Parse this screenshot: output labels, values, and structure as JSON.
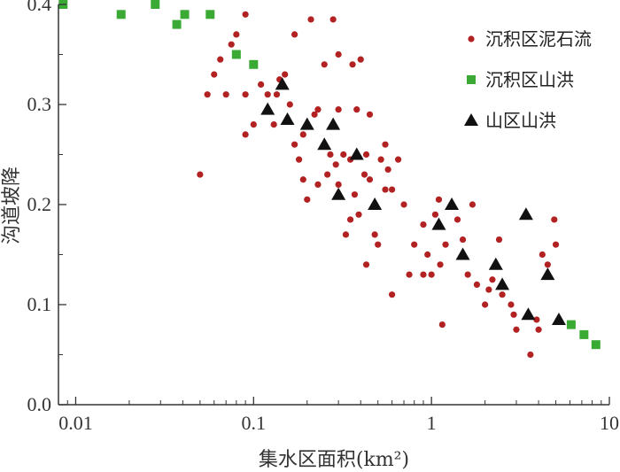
{
  "chart_data": {
    "type": "scatter",
    "xlabel": "集水区面积(km²)",
    "ylabel": "沟道坡降",
    "xscale": "log",
    "xlim": [
      0.008,
      10
    ],
    "ylim": [
      0,
      0.4
    ],
    "x_ticks": [
      0.01,
      0.1,
      1,
      10
    ],
    "x_tick_labels": [
      "0.01",
      "0.1",
      "1",
      "10"
    ],
    "y_ticks": [
      0,
      0.1,
      0.2,
      0.3,
      0.4
    ],
    "y_tick_labels": [
      "0.0",
      "0.1",
      "0.2",
      "0.3",
      "0.4"
    ],
    "grid": false,
    "legend_position": "top-right",
    "series": [
      {
        "name": "沉积区泥石流",
        "marker": "circle",
        "color": "#b22222",
        "points": [
          [
            0.05,
            0.23
          ],
          [
            0.055,
            0.31
          ],
          [
            0.06,
            0.33
          ],
          [
            0.065,
            0.345
          ],
          [
            0.07,
            0.31
          ],
          [
            0.075,
            0.36
          ],
          [
            0.08,
            0.37
          ],
          [
            0.09,
            0.39
          ],
          [
            0.09,
            0.31
          ],
          [
            0.09,
            0.27
          ],
          [
            0.1,
            0.28
          ],
          [
            0.11,
            0.32
          ],
          [
            0.12,
            0.31
          ],
          [
            0.13,
            0.28
          ],
          [
            0.135,
            0.31
          ],
          [
            0.14,
            0.325
          ],
          [
            0.15,
            0.33
          ],
          [
            0.16,
            0.3
          ],
          [
            0.17,
            0.37
          ],
          [
            0.17,
            0.26
          ],
          [
            0.18,
            0.245
          ],
          [
            0.19,
            0.27
          ],
          [
            0.19,
            0.225
          ],
          [
            0.2,
            0.205
          ],
          [
            0.21,
            0.385
          ],
          [
            0.22,
            0.29
          ],
          [
            0.23,
            0.295
          ],
          [
            0.23,
            0.22
          ],
          [
            0.25,
            0.34
          ],
          [
            0.26,
            0.23
          ],
          [
            0.27,
            0.25
          ],
          [
            0.28,
            0.385
          ],
          [
            0.29,
            0.24
          ],
          [
            0.3,
            0.35
          ],
          [
            0.3,
            0.295
          ],
          [
            0.3,
            0.22
          ],
          [
            0.32,
            0.25
          ],
          [
            0.33,
            0.17
          ],
          [
            0.35,
            0.245
          ],
          [
            0.35,
            0.185
          ],
          [
            0.36,
            0.34
          ],
          [
            0.37,
            0.21
          ],
          [
            0.38,
            0.295
          ],
          [
            0.39,
            0.19
          ],
          [
            0.4,
            0.345
          ],
          [
            0.42,
            0.23
          ],
          [
            0.43,
            0.25
          ],
          [
            0.43,
            0.14
          ],
          [
            0.45,
            0.29
          ],
          [
            0.45,
            0.225
          ],
          [
            0.48,
            0.17
          ],
          [
            0.5,
            0.16
          ],
          [
            0.52,
            0.245
          ],
          [
            0.55,
            0.215
          ],
          [
            0.55,
            0.26
          ],
          [
            0.57,
            0.235
          ],
          [
            0.6,
            0.215
          ],
          [
            0.6,
            0.11
          ],
          [
            0.65,
            0.245
          ],
          [
            0.7,
            0.2
          ],
          [
            0.75,
            0.13
          ],
          [
            0.8,
            0.16
          ],
          [
            0.9,
            0.18
          ],
          [
            0.9,
            0.13
          ],
          [
            0.95,
            0.15
          ],
          [
            1.0,
            0.13
          ],
          [
            1.05,
            0.19
          ],
          [
            1.1,
            0.205
          ],
          [
            1.12,
            0.14
          ],
          [
            1.15,
            0.08
          ],
          [
            1.2,
            0.16
          ],
          [
            1.4,
            0.185
          ],
          [
            1.5,
            0.165
          ],
          [
            1.6,
            0.13
          ],
          [
            1.7,
            0.2
          ],
          [
            1.8,
            0.12
          ],
          [
            2.0,
            0.1
          ],
          [
            2.1,
            0.115
          ],
          [
            2.2,
            0.125
          ],
          [
            2.4,
            0.165
          ],
          [
            2.5,
            0.11
          ],
          [
            2.8,
            0.1
          ],
          [
            2.9,
            0.09
          ],
          [
            3.0,
            0.075
          ],
          [
            3.6,
            0.05
          ],
          [
            3.9,
            0.085
          ],
          [
            4.0,
            0.075
          ],
          [
            4.2,
            0.15
          ],
          [
            4.5,
            0.14
          ],
          [
            4.9,
            0.185
          ],
          [
            5.0,
            0.16
          ]
        ]
      },
      {
        "name": "沉积区山洪",
        "marker": "square",
        "color": "#3aaa35",
        "points": [
          [
            0.0085,
            0.4
          ],
          [
            0.018,
            0.39
          ],
          [
            0.028,
            0.4
          ],
          [
            0.037,
            0.38
          ],
          [
            0.041,
            0.39
          ],
          [
            0.057,
            0.39
          ],
          [
            0.08,
            0.35
          ],
          [
            0.1,
            0.34
          ],
          [
            6.1,
            0.08
          ],
          [
            7.2,
            0.07
          ],
          [
            8.4,
            0.06
          ]
        ]
      },
      {
        "name": "山区山洪",
        "marker": "triangle",
        "color": "#111111",
        "points": [
          [
            0.12,
            0.295
          ],
          [
            0.145,
            0.32
          ],
          [
            0.155,
            0.285
          ],
          [
            0.2,
            0.28
          ],
          [
            0.25,
            0.26
          ],
          [
            0.28,
            0.28
          ],
          [
            0.3,
            0.21
          ],
          [
            0.38,
            0.25
          ],
          [
            0.48,
            0.2
          ],
          [
            1.1,
            0.18
          ],
          [
            1.3,
            0.2
          ],
          [
            1.5,
            0.15
          ],
          [
            2.3,
            0.14
          ],
          [
            2.5,
            0.12
          ],
          [
            3.5,
            0.09
          ],
          [
            3.4,
            0.19
          ],
          [
            4.5,
            0.13
          ],
          [
            5.2,
            0.085
          ]
        ]
      }
    ]
  }
}
